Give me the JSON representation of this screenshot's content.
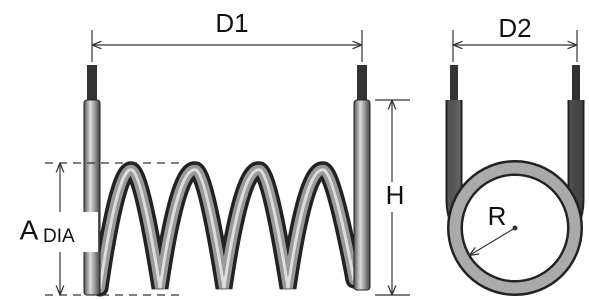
{
  "labels": {
    "d1": "D1",
    "d2": "D2",
    "h": "H",
    "a": "A",
    "dia": "DIA",
    "r": "R"
  }
}
